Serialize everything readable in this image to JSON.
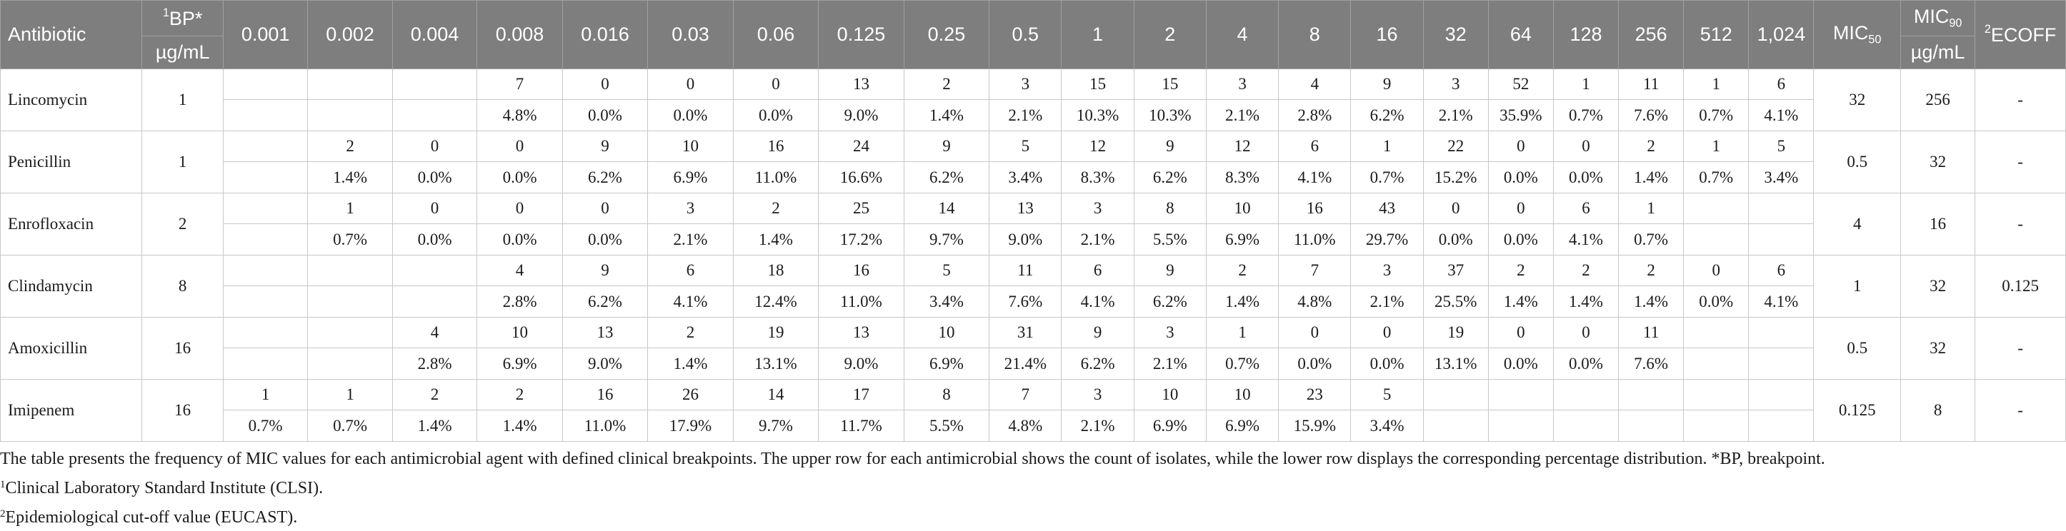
{
  "header": {
    "antibiotic_label": "Antibiotic",
    "bp_sup": "1",
    "bp_label": "BP*",
    "bp_unit": "µg/mL",
    "concentrations": [
      "0.001",
      "0.002",
      "0.004",
      "0.008",
      "0.016",
      "0.03",
      "0.06",
      "0.125",
      "0.25",
      "0.5",
      "1",
      "2",
      "4",
      "8",
      "16",
      "32",
      "64",
      "128",
      "256",
      "512",
      "1,024"
    ],
    "mic50_base": "MIC",
    "mic50_sub": "50",
    "mic90_base": "MIC",
    "mic90_sub": "90",
    "mic_unit": "µg/mL",
    "ecoff_sup": "2",
    "ecoff_label": "ECOFF"
  },
  "rows": [
    {
      "name": "Lincomycin",
      "bp": "1",
      "counts": [
        "",
        "",
        "",
        "7",
        "0",
        "0",
        "0",
        "13",
        "2",
        "3",
        "15",
        "15",
        "3",
        "4",
        "9",
        "3",
        "52",
        "1",
        "11",
        "1",
        "6"
      ],
      "percents": [
        "",
        "",
        "",
        "4.8%",
        "0.0%",
        "0.0%",
        "0.0%",
        "9.0%",
        "1.4%",
        "2.1%",
        "10.3%",
        "10.3%",
        "2.1%",
        "2.8%",
        "6.2%",
        "2.1%",
        "35.9%",
        "0.7%",
        "7.6%",
        "0.7%",
        "4.1%"
      ],
      "mic50": "32",
      "mic90": "256",
      "ecoff": "-"
    },
    {
      "name": "Penicillin",
      "bp": "1",
      "counts": [
        "",
        "2",
        "0",
        "0",
        "9",
        "10",
        "16",
        "24",
        "9",
        "5",
        "12",
        "9",
        "12",
        "6",
        "1",
        "22",
        "0",
        "0",
        "2",
        "1",
        "5"
      ],
      "percents": [
        "",
        "1.4%",
        "0.0%",
        "0.0%",
        "6.2%",
        "6.9%",
        "11.0%",
        "16.6%",
        "6.2%",
        "3.4%",
        "8.3%",
        "6.2%",
        "8.3%",
        "4.1%",
        "0.7%",
        "15.2%",
        "0.0%",
        "0.0%",
        "1.4%",
        "0.7%",
        "3.4%"
      ],
      "mic50": "0.5",
      "mic90": "32",
      "ecoff": "-"
    },
    {
      "name": "Enrofloxacin",
      "bp": "2",
      "counts": [
        "",
        "1",
        "0",
        "0",
        "0",
        "3",
        "2",
        "25",
        "14",
        "13",
        "3",
        "8",
        "10",
        "16",
        "43",
        "0",
        "0",
        "6",
        "1",
        "",
        ""
      ],
      "percents": [
        "",
        "0.7%",
        "0.0%",
        "0.0%",
        "0.0%",
        "2.1%",
        "1.4%",
        "17.2%",
        "9.7%",
        "9.0%",
        "2.1%",
        "5.5%",
        "6.9%",
        "11.0%",
        "29.7%",
        "0.0%",
        "0.0%",
        "4.1%",
        "0.7%",
        "",
        ""
      ],
      "mic50": "4",
      "mic90": "16",
      "ecoff": "-"
    },
    {
      "name": "Clindamycin",
      "bp": "8",
      "counts": [
        "",
        "",
        "",
        "4",
        "9",
        "6",
        "18",
        "16",
        "5",
        "11",
        "6",
        "9",
        "2",
        "7",
        "3",
        "37",
        "2",
        "2",
        "2",
        "0",
        "6"
      ],
      "percents": [
        "",
        "",
        "",
        "2.8%",
        "6.2%",
        "4.1%",
        "12.4%",
        "11.0%",
        "3.4%",
        "7.6%",
        "4.1%",
        "6.2%",
        "1.4%",
        "4.8%",
        "2.1%",
        "25.5%",
        "1.4%",
        "1.4%",
        "1.4%",
        "0.0%",
        "4.1%"
      ],
      "mic50": "1",
      "mic90": "32",
      "ecoff": "0.125"
    },
    {
      "name": "Amoxicillin",
      "bp": "16",
      "counts": [
        "",
        "",
        "4",
        "10",
        "13",
        "2",
        "19",
        "13",
        "10",
        "31",
        "9",
        "3",
        "1",
        "0",
        "0",
        "19",
        "0",
        "0",
        "11",
        "",
        ""
      ],
      "percents": [
        "",
        "",
        "2.8%",
        "6.9%",
        "9.0%",
        "1.4%",
        "13.1%",
        "9.0%",
        "6.9%",
        "21.4%",
        "6.2%",
        "2.1%",
        "0.7%",
        "0.0%",
        "0.0%",
        "13.1%",
        "0.0%",
        "0.0%",
        "7.6%",
        "",
        ""
      ],
      "mic50": "0.5",
      "mic90": "32",
      "ecoff": "-"
    },
    {
      "name": "Imipenem",
      "bp": "16",
      "counts": [
        "1",
        "1",
        "2",
        "2",
        "16",
        "26",
        "14",
        "17",
        "8",
        "7",
        "3",
        "10",
        "10",
        "23",
        "5",
        "",
        "",
        "",
        "",
        "",
        ""
      ],
      "percents": [
        "0.7%",
        "0.7%",
        "1.4%",
        "1.4%",
        "11.0%",
        "17.9%",
        "9.7%",
        "11.7%",
        "5.5%",
        "4.8%",
        "2.1%",
        "6.9%",
        "6.9%",
        "15.9%",
        "3.4%",
        "",
        "",
        "",
        "",
        "",
        ""
      ],
      "mic50": "0.125",
      "mic90": "8",
      "ecoff": "-"
    }
  ],
  "notes": {
    "caption": "The table presents the frequency of MIC values for each antimicrobial agent with defined clinical breakpoints. The upper row for each antimicrobial shows the count of isolates, while the lower row displays the corresponding percentage distribution. *BP, breakpoint.",
    "fn1_sup": "1",
    "fn1_text": "Clinical Laboratory Standard Institute (CLSI).",
    "fn2_sup": "2",
    "fn2_text": "Epidemiological cut-off value (EUCAST)."
  }
}
